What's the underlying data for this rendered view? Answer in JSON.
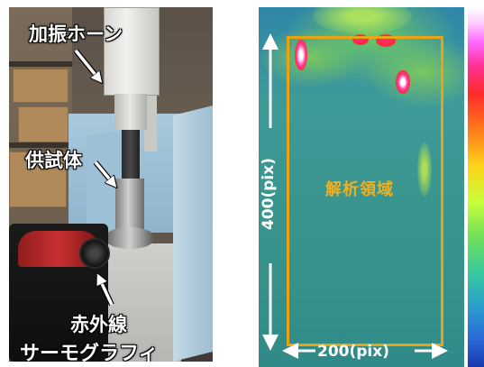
{
  "photo": {
    "labels": {
      "horn": "加振ホーン",
      "specimen": "供試体",
      "camera_line1": "赤外線",
      "camera_line2": "サーモグラフィ"
    }
  },
  "thermal": {
    "roi_label": "解析領域",
    "height_label": "400(pix)",
    "width_label": "200(pix)",
    "roi_border_color": "#e8a317",
    "dimension_color": "#ffffff"
  }
}
